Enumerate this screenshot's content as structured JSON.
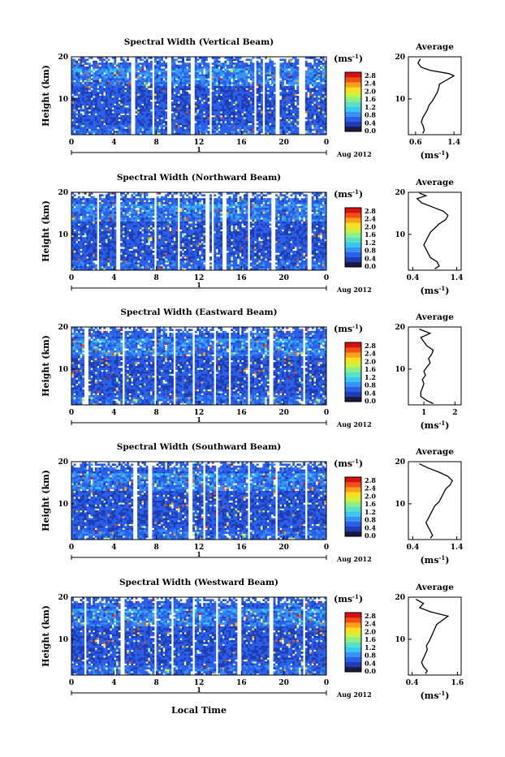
{
  "xlabel": "Local Time",
  "date_label": "Aug 2012",
  "day_label": "1",
  "colorbar_unit": "(ms",
  "unit_exp": "-1",
  "avg_title": "Average",
  "avg_xlabel": "(ms",
  "ylabel": "Height (km)",
  "colorbar_ticks": [
    "2.8",
    "2.4",
    "2.0",
    "1.6",
    "1.2",
    "0.8",
    "0.4",
    "0.0"
  ],
  "colorbar_colors": [
    "#1a1a40",
    "#1f3cb4",
    "#2a60e8",
    "#3a90f4",
    "#36c8f0",
    "#5ae0c8",
    "#8cf088",
    "#d0f040",
    "#f8e020",
    "#f8a018",
    "#f05018",
    "#d81010"
  ],
  "chart_data": [
    {
      "type": "heatmap",
      "title": "Spectral Width (Vertical Beam)",
      "x_ticks": [
        "0",
        "4",
        "8",
        "12",
        "16",
        "20",
        "0"
      ],
      "y_ticks": [
        "20",
        "10"
      ],
      "xlim": [
        0,
        24
      ],
      "ylim": [
        1.5,
        20
      ],
      "clim": [
        0,
        3.0
      ],
      "gaps": [
        [
          5.6,
          5.9
        ],
        [
          7.6,
          7.8
        ],
        [
          9.0,
          9.3
        ],
        [
          11.3,
          11.5
        ],
        [
          12.9,
          13.2
        ],
        [
          17.2,
          17.4
        ],
        [
          18.0,
          18.2
        ],
        [
          19.2,
          19.5
        ],
        [
          21.5,
          21.9
        ]
      ],
      "average": {
        "xticks": [
          "0.6",
          "1.4"
        ],
        "xlim": [
          0.45,
          1.55
        ],
        "profile": [
          [
            0.75,
            1.8
          ],
          [
            0.78,
            2.5
          ],
          [
            0.76,
            3.5
          ],
          [
            0.72,
            4.5
          ],
          [
            0.75,
            5.5
          ],
          [
            0.8,
            6.5
          ],
          [
            0.85,
            7.5
          ],
          [
            0.88,
            8.5
          ],
          [
            0.95,
            9.5
          ],
          [
            1.0,
            10.5
          ],
          [
            1.05,
            11.5
          ],
          [
            1.08,
            12.5
          ],
          [
            1.1,
            13.5
          ],
          [
            1.25,
            14.5
          ],
          [
            1.4,
            15.5
          ],
          [
            1.3,
            16.0
          ],
          [
            0.9,
            16.8
          ],
          [
            0.72,
            17.5
          ],
          [
            0.65,
            18.5
          ],
          [
            0.7,
            19.5
          ]
        ]
      }
    },
    {
      "type": "heatmap",
      "title": "Spectral Width (Northward Beam)",
      "x_ticks": [
        "0",
        "4",
        "8",
        "12",
        "16",
        "20",
        "0"
      ],
      "y_ticks": [
        "20",
        "10"
      ],
      "xlim": [
        0,
        24
      ],
      "ylim": [
        1.5,
        20
      ],
      "clim": [
        0,
        3.0
      ],
      "gaps": [
        [
          2.4,
          2.6
        ],
        [
          4.2,
          4.5
        ],
        [
          7.9,
          8.1
        ],
        [
          10.0,
          10.2
        ],
        [
          12.6,
          13.0
        ],
        [
          13.2,
          13.4
        ],
        [
          14.3,
          14.6
        ],
        [
          16.6,
          16.9
        ],
        [
          18.8,
          19.2
        ],
        [
          22.3,
          22.6
        ]
      ],
      "average": {
        "xticks": [
          "0.4",
          "1.4"
        ],
        "xlim": [
          0.3,
          1.5
        ],
        "profile": [
          [
            0.9,
            1.8
          ],
          [
            1.0,
            2.5
          ],
          [
            0.95,
            3.5
          ],
          [
            0.8,
            4.5
          ],
          [
            0.75,
            5.5
          ],
          [
            0.7,
            6.5
          ],
          [
            0.65,
            7.5
          ],
          [
            0.7,
            8.5
          ],
          [
            0.75,
            9.5
          ],
          [
            0.8,
            10.5
          ],
          [
            0.9,
            11.5
          ],
          [
            1.0,
            12.5
          ],
          [
            1.15,
            13.5
          ],
          [
            1.2,
            14.5
          ],
          [
            1.1,
            15.5
          ],
          [
            0.85,
            16.5
          ],
          [
            0.6,
            17.5
          ],
          [
            0.5,
            18.5
          ],
          [
            0.7,
            19.2
          ],
          [
            0.55,
            19.8
          ]
        ]
      }
    },
    {
      "type": "heatmap",
      "title": "Spectral Width (Eastward Beam)",
      "x_ticks": [
        "0",
        "4",
        "8",
        "12",
        "16",
        "20",
        "0"
      ],
      "y_ticks": [
        "20",
        "10"
      ],
      "xlim": [
        0,
        24
      ],
      "ylim": [
        1.5,
        20
      ],
      "clim": [
        0,
        3.0
      ],
      "gaps": [
        [
          1.3,
          1.5
        ],
        [
          4.8,
          5.0
        ],
        [
          7.9,
          8.1
        ],
        [
          9.6,
          9.8
        ],
        [
          11.4,
          11.6
        ],
        [
          13.4,
          13.6
        ],
        [
          14.8,
          15.0
        ],
        [
          16.7,
          16.9
        ],
        [
          18.6,
          18.9
        ],
        [
          21.8,
          22.0
        ]
      ],
      "average": {
        "xticks": [
          "1",
          "2"
        ],
        "xlim": [
          0.5,
          2.2
        ],
        "profile": [
          [
            1.3,
            1.8
          ],
          [
            1.1,
            2.5
          ],
          [
            0.9,
            3.5
          ],
          [
            0.9,
            4.5
          ],
          [
            0.95,
            5.5
          ],
          [
            1.0,
            6.5
          ],
          [
            0.95,
            7.5
          ],
          [
            1.05,
            8.5
          ],
          [
            1.0,
            9.5
          ],
          [
            1.1,
            10.5
          ],
          [
            1.2,
            11.5
          ],
          [
            1.15,
            12.5
          ],
          [
            1.25,
            13.5
          ],
          [
            1.3,
            14.5
          ],
          [
            1.1,
            15.5
          ],
          [
            1.0,
            16.5
          ],
          [
            0.9,
            17.5
          ],
          [
            1.2,
            18.5
          ],
          [
            0.85,
            19.5
          ]
        ]
      }
    },
    {
      "type": "heatmap",
      "title": "Spectral Width (Southward Beam)",
      "x_ticks": [
        "0",
        "4",
        "8",
        "12",
        "16",
        "20",
        "0"
      ],
      "y_ticks": [
        "20",
        "10"
      ],
      "xlim": [
        0,
        24
      ],
      "ylim": [
        1.5,
        20
      ],
      "clim": [
        0,
        3.0
      ],
      "gaps": [
        [
          5.8,
          6.1
        ],
        [
          7.2,
          7.5
        ],
        [
          11.1,
          11.4
        ],
        [
          12.4,
          12.6
        ],
        [
          13.7,
          13.9
        ],
        [
          16.7,
          16.9
        ],
        [
          19.2,
          19.4
        ],
        [
          22.0,
          22.2
        ]
      ],
      "average": {
        "xticks": [
          "0.4",
          "1.4"
        ],
        "xlim": [
          0.3,
          1.5
        ],
        "profile": [
          [
            0.8,
            1.8
          ],
          [
            0.85,
            2.5
          ],
          [
            0.8,
            3.5
          ],
          [
            0.75,
            4.5
          ],
          [
            0.7,
            5.5
          ],
          [
            0.75,
            6.5
          ],
          [
            0.8,
            7.5
          ],
          [
            0.85,
            8.5
          ],
          [
            0.9,
            9.5
          ],
          [
            1.0,
            10.5
          ],
          [
            1.05,
            11.5
          ],
          [
            1.1,
            12.5
          ],
          [
            1.15,
            13.5
          ],
          [
            1.25,
            14.5
          ],
          [
            1.3,
            15.5
          ],
          [
            1.2,
            16.5
          ],
          [
            1.0,
            17.5
          ],
          [
            0.75,
            18.5
          ],
          [
            0.55,
            19.5
          ]
        ]
      }
    },
    {
      "type": "heatmap",
      "title": "Spectral Width (Westward Beam)",
      "x_ticks": [
        "0",
        "4",
        "8",
        "12",
        "16",
        "20",
        "0"
      ],
      "y_ticks": [
        "20",
        "10"
      ],
      "xlim": [
        0,
        24
      ],
      "ylim": [
        1.5,
        20
      ],
      "clim": [
        0,
        3.0
      ],
      "gaps": [
        [
          1.2,
          1.4
        ],
        [
          4.6,
          4.9
        ],
        [
          7.9,
          8.1
        ],
        [
          9.4,
          9.6
        ],
        [
          11.4,
          11.6
        ],
        [
          13.7,
          13.9
        ],
        [
          15.7,
          15.9
        ],
        [
          18.7,
          19.0
        ],
        [
          21.8,
          22.0
        ]
      ],
      "average": {
        "xticks": [
          "0.4",
          "1.6"
        ],
        "xlim": [
          0.3,
          1.7
        ],
        "profile": [
          [
            0.75,
            1.8
          ],
          [
            0.8,
            2.5
          ],
          [
            0.7,
            3.5
          ],
          [
            0.65,
            4.5
          ],
          [
            0.7,
            5.5
          ],
          [
            0.75,
            6.5
          ],
          [
            0.8,
            7.5
          ],
          [
            0.78,
            8.5
          ],
          [
            0.85,
            9.5
          ],
          [
            0.9,
            10.5
          ],
          [
            0.95,
            11.5
          ],
          [
            1.0,
            12.5
          ],
          [
            1.05,
            13.5
          ],
          [
            1.2,
            14.5
          ],
          [
            1.35,
            15.5
          ],
          [
            0.9,
            16.5
          ],
          [
            0.6,
            17.5
          ],
          [
            0.7,
            18.5
          ],
          [
            0.5,
            19.5
          ]
        ]
      }
    }
  ]
}
